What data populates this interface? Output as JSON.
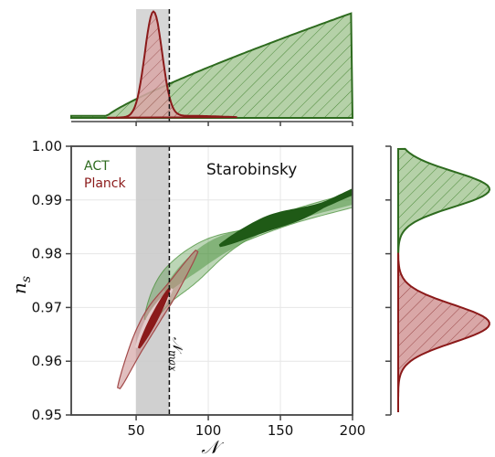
{
  "chart_data": {
    "type": "contour",
    "title": "Starobinsky",
    "xlabel": "𝒩",
    "ylabel": "n",
    "ylabel_sub": "s",
    "xlim": [
      5,
      200
    ],
    "ylim": [
      0.95,
      1.0
    ],
    "xticks": [
      50,
      100,
      150,
      200
    ],
    "yticks": [
      "0.95",
      "0.96",
      "0.97",
      "0.98",
      "0.99",
      "1.00"
    ],
    "grid": true,
    "legend": {
      "placement": "top-left",
      "entries": [
        "ACT",
        "Planck"
      ]
    },
    "shaded_band": {
      "x": [
        50,
        73
      ],
      "color": "#c8c8c8"
    },
    "vline": {
      "x": 73,
      "style": "dashed",
      "label": "𝒩",
      "label_sub": "max"
    },
    "colors": {
      "ACT": "#2e6b1f",
      "Planck": "#8b1a1a"
    },
    "series": [
      {
        "name": "ACT",
        "ridge": [
          [
            58,
            0.9675
          ],
          [
            70,
            0.973
          ],
          [
            85,
            0.977
          ],
          [
            105,
            0.981
          ],
          [
            130,
            0.984
          ],
          [
            160,
            0.987
          ],
          [
            200,
            0.99
          ]
        ],
        "core": [
          [
            108,
            0.9815
          ],
          [
            140,
            0.9855
          ],
          [
            170,
            0.988
          ],
          [
            200,
            0.9915
          ]
        ]
      },
      {
        "name": "Planck",
        "ridge": [
          [
            38,
            0.955
          ],
          [
            50,
            0.9625
          ],
          [
            62,
            0.9685
          ],
          [
            75,
            0.9735
          ],
          [
            92,
            0.9805
          ]
        ],
        "core": [
          [
            52,
            0.9625
          ],
          [
            73,
            0.9735
          ]
        ]
      }
    ],
    "top_panel": {
      "x": [
        5,
        200
      ],
      "series": [
        {
          "name": "Planck",
          "shape": "peak",
          "mode": 62,
          "width": 6
        },
        {
          "name": "ACT",
          "shape": "rising",
          "start": 30,
          "end": 200
        }
      ]
    },
    "right_panel": {
      "y": [
        0.95,
        1.0
      ],
      "series": [
        {
          "name": "ACT",
          "mode": 0.992,
          "sigma": 0.0033
        },
        {
          "name": "Planck",
          "mode": 0.967,
          "sigma": 0.0035
        }
      ]
    }
  }
}
